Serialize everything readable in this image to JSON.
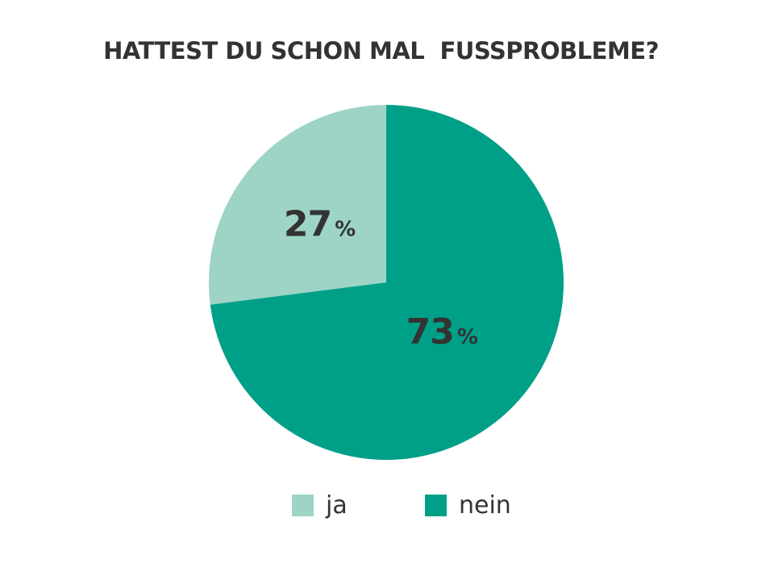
{
  "chart_data": {
    "type": "pie",
    "title": "HATTEST DU SCHON MAL  FUSSPROBLEME?",
    "slices": [
      {
        "label": "ja",
        "value": 27,
        "display": "27",
        "unit": "%",
        "color": "#9dd4c6"
      },
      {
        "label": "nein",
        "value": 73,
        "display": "73",
        "unit": "%",
        "color": "#00a088"
      }
    ],
    "legend_position": "bottom",
    "text_color": "#333333"
  }
}
